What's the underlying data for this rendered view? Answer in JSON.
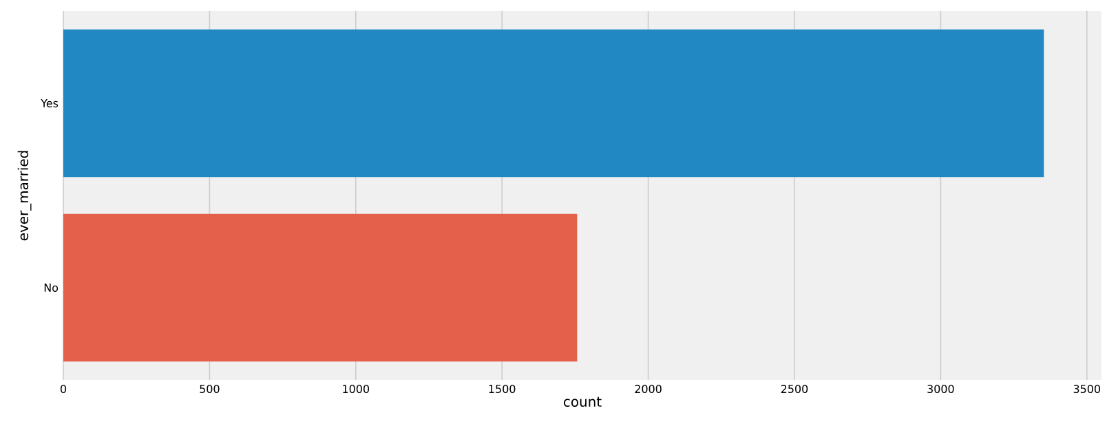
{
  "chart_data": {
    "type": "bar",
    "orientation": "horizontal",
    "categories": [
      "Yes",
      "No"
    ],
    "values": [
      3353,
      1757
    ],
    "colors": [
      "#2288c4",
      "#e5604a"
    ],
    "xlabel": "count",
    "ylabel": "ever_married",
    "xlim": [
      0,
      3550
    ],
    "xticks": [
      0,
      500,
      1000,
      1500,
      2000,
      2500,
      3000,
      3500
    ],
    "grid": "x"
  }
}
